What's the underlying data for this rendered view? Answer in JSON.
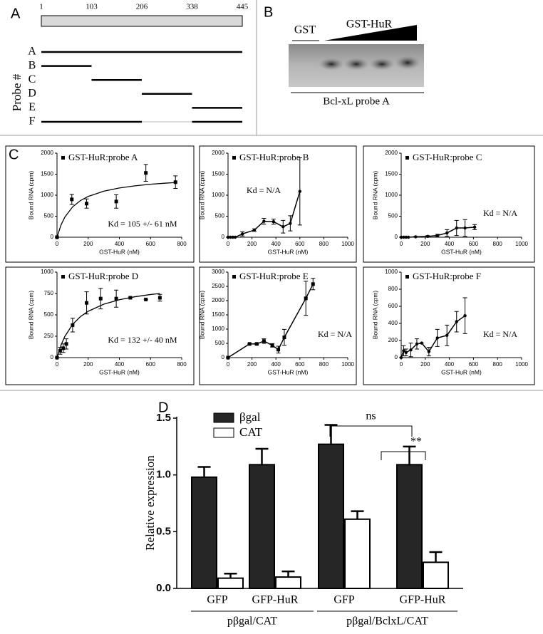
{
  "panel_labels": [
    "A",
    "B",
    "C",
    "D"
  ],
  "probe_map": {
    "ticks": [
      1,
      103,
      206,
      338,
      445
    ],
    "axis_label": "Probe #",
    "probes": [
      {
        "name": "A",
        "segments": [
          [
            1,
            445
          ]
        ]
      },
      {
        "name": "B",
        "segments": [
          [
            1,
            103
          ]
        ]
      },
      {
        "name": "C",
        "segments": [
          [
            103,
            206
          ]
        ]
      },
      {
        "name": "D",
        "segments": [
          [
            206,
            338
          ]
        ]
      },
      {
        "name": "E",
        "segments": [
          [
            338,
            445
          ]
        ]
      },
      {
        "name": "F",
        "segments": [
          [
            1,
            206
          ],
          [
            338,
            445
          ]
        ]
      }
    ]
  },
  "gel": {
    "lane_control": "GST",
    "lane_titration": "GST-HuR",
    "caption": "Bcl-xL probe A"
  },
  "chart_data": [
    {
      "type": "scatter",
      "marker": "square",
      "xlabel": "GST-HuR (nM)",
      "ylabel": "Bound RNA (cpm)",
      "annotation": "Kd = 105  +/- 61 nM",
      "xlim": [
        0,
        800
      ],
      "xticks": [
        0,
        200,
        400,
        600,
        800
      ],
      "ylim": [
        0,
        2000
      ],
      "yticks": [
        0,
        500,
        1000,
        1500,
        2000
      ],
      "series": [
        {
          "name": "GST-HuR:probe A",
          "color": "#000000",
          "x": [
            0,
            95,
            190,
            380,
            570,
            760
          ],
          "values": [
            0,
            900,
            800,
            850,
            1530,
            1310
          ],
          "errors": [
            0,
            120,
            110,
            160,
            200,
            150
          ]
        }
      ],
      "fit": {
        "x": [
          0,
          25,
          50,
          100,
          150,
          200,
          300,
          400,
          500,
          600,
          700,
          760
        ],
        "values": [
          0,
          285,
          477,
          722,
          871,
          970,
          1096,
          1172,
          1223,
          1260,
          1287,
          1301
        ]
      }
    },
    {
      "type": "line",
      "marker": "circle",
      "xlabel": "GST-HuR (nM)",
      "ylabel": "Bound RNA (cpm)",
      "annotation": "Kd = N/A",
      "xlim": [
        0,
        1000
      ],
      "xticks": [
        0,
        200,
        400,
        600,
        800,
        1000
      ],
      "ylim": [
        0,
        2000
      ],
      "yticks": [
        0,
        500,
        1000,
        1500,
        2000
      ],
      "series": [
        {
          "name": "GST-HuR:probe B",
          "color": "#000000",
          "x": [
            0,
            20,
            40,
            60,
            120,
            220,
            300,
            380,
            460,
            520,
            600
          ],
          "values": [
            0,
            0,
            0,
            0,
            80,
            170,
            380,
            370,
            250,
            330,
            1090
          ],
          "errors": [
            0,
            0,
            0,
            0,
            50,
            30,
            70,
            60,
            150,
            180,
            800
          ]
        }
      ]
    },
    {
      "type": "line",
      "marker": "circle",
      "xlabel": "GST-HuR (nM)",
      "ylabel": "Bound RNA (cpm)",
      "annotation": "Kd = N/A",
      "xlim": [
        0,
        1000
      ],
      "xticks": [
        0,
        200,
        400,
        600,
        800,
        1000
      ],
      "ylim": [
        0,
        2000
      ],
      "yticks": [
        0,
        500,
        1000,
        1500,
        2000
      ],
      "series": [
        {
          "name": "GST-HuR:probe C",
          "color": "#000000",
          "x": [
            0,
            20,
            40,
            60,
            120,
            220,
            300,
            380,
            460,
            530,
            610
          ],
          "values": [
            0,
            0,
            0,
            0,
            10,
            20,
            40,
            100,
            220,
            220,
            240
          ],
          "errors": [
            0,
            0,
            0,
            0,
            10,
            15,
            30,
            80,
            180,
            200,
            60
          ]
        }
      ]
    },
    {
      "type": "scatter",
      "marker": "square",
      "xlabel": "GST-HuR (nM)",
      "ylabel": "Bound RNA (cpm)",
      "annotation": "Kd = 132 +/- 40 nM",
      "xlim": [
        0,
        800
      ],
      "xticks": [
        0,
        200,
        400,
        600,
        800
      ],
      "ylim": [
        0,
        1000
      ],
      "yticks": [
        0,
        250,
        500,
        750,
        1000
      ],
      "series": [
        {
          "name": "GST-HuR:probe D",
          "color": "#000000",
          "x": [
            0,
            20,
            40,
            60,
            100,
            190,
            280,
            380,
            470,
            570,
            660
          ],
          "values": [
            0,
            80,
            110,
            160,
            380,
            640,
            690,
            690,
            700,
            680,
            700
          ],
          "errors": [
            0,
            40,
            50,
            60,
            80,
            130,
            120,
            100,
            0,
            0,
            40
          ]
        }
      ],
      "fit": {
        "x": [
          0,
          25,
          50,
          100,
          150,
          200,
          300,
          400,
          500,
          600,
          660
        ],
        "values": [
          0,
          143,
          247,
          388,
          479,
          542,
          625,
          677,
          712,
          738,
          750
        ]
      }
    },
    {
      "type": "line",
      "marker": "square",
      "xlabel": "GST-HuR (nM)",
      "ylabel": "Bound RNA (cpm)",
      "annotation": "Kd = N/A",
      "xlim": [
        0,
        1000
      ],
      "xticks": [
        0,
        200,
        400,
        600,
        800,
        1000
      ],
      "ylim": [
        0,
        3000
      ],
      "yticks": [
        0,
        500,
        1000,
        1500,
        2000,
        2500,
        3000
      ],
      "series": [
        {
          "name": "GST-HuR:probe E",
          "color": "#000000",
          "x": [
            0,
            180,
            240,
            300,
            370,
            420,
            470,
            650,
            710
          ],
          "values": [
            0,
            480,
            480,
            580,
            430,
            280,
            710,
            2080,
            2580
          ],
          "errors": [
            0,
            0,
            30,
            80,
            60,
            120,
            280,
            600,
            200
          ]
        }
      ]
    },
    {
      "type": "line",
      "marker": "circle",
      "xlabel": "GST-HuR (nM)",
      "ylabel": "Bound RNA (cpm)",
      "annotation": "Kd = N/A",
      "xlim": [
        0,
        1000
      ],
      "xticks": [
        0,
        200,
        400,
        600,
        800,
        1000
      ],
      "ylim": [
        0,
        1000
      ],
      "yticks": [
        0,
        200,
        400,
        600,
        800,
        1000
      ],
      "series": [
        {
          "name": "GST-HuR:probe F",
          "color": "#000000",
          "x": [
            0,
            20,
            40,
            80,
            130,
            170,
            230,
            300,
            380,
            460,
            530
          ],
          "values": [
            0,
            80,
            60,
            90,
            160,
            170,
            70,
            230,
            260,
            420,
            490
          ],
          "errors": [
            0,
            60,
            40,
            80,
            60,
            0,
            50,
            100,
            120,
            120,
            210
          ]
        }
      ]
    },
    {
      "type": "bar",
      "ylabel": "Relative expression",
      "ylim": [
        0,
        1.5
      ],
      "yticks": [
        {
          "value": 0,
          "label": "0.0"
        },
        0.5,
        {
          "value": 1,
          "label": "1.0"
        },
        1.5
      ],
      "categories": [
        "GFP",
        "GFP-HuR",
        "GFP",
        "GFP-HuR"
      ],
      "groups": [
        "pβgal/CAT",
        "pβgal/BclxL/CAT"
      ],
      "series": [
        {
          "name": "βgal",
          "color": "#262626",
          "values": [
            0.98,
            1.09,
            1.27,
            1.09
          ],
          "errors": [
            0.09,
            0.14,
            0.17,
            0.16
          ]
        },
        {
          "name": "CAT",
          "color": "#ffffff",
          "values": [
            0.09,
            0.1,
            0.61,
            0.23
          ],
          "errors": [
            0.04,
            0.05,
            0.07,
            0.09
          ]
        }
      ],
      "annotations": [
        "ns",
        "**"
      ]
    }
  ]
}
